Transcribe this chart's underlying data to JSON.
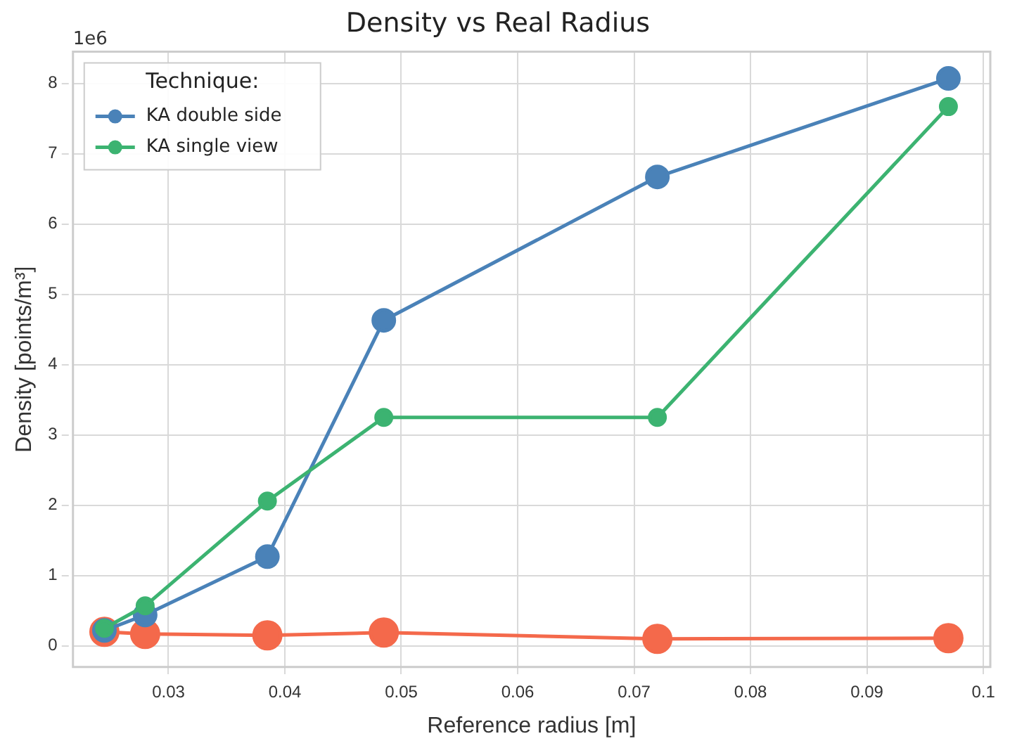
{
  "chart_data": {
    "type": "line",
    "title": "Density vs Real Radius",
    "xlabel": "Reference radius [m]",
    "ylabel": "Density [points/m³]",
    "legend_title": "Technique:",
    "annotations": [
      "1e6"
    ],
    "x": [
      0.0245,
      0.028,
      0.0385,
      0.0485,
      0.072,
      0.097
    ],
    "series": [
      {
        "color": "#f4694b",
        "values": [
          0.2,
          0.17,
          0.15,
          0.19,
          0.1,
          0.11
        ]
      },
      {
        "name": "KA double side",
        "color": "#4a82b8",
        "values": [
          0.22,
          0.44,
          1.27,
          4.63,
          6.67,
          8.07
        ]
      },
      {
        "name": "KA single view",
        "color": "#3cb371",
        "values": [
          0.25,
          0.57,
          2.06,
          3.25,
          3.25,
          7.67
        ]
      }
    ],
    "xlim": [
      0.0218,
      0.1006
    ],
    "xticks": [
      0.03,
      0.04,
      0.05,
      0.06,
      0.07,
      0.08,
      0.09,
      0.1
    ],
    "ylim": [
      -0.3,
      8.45
    ],
    "yticks": [
      0,
      1,
      2,
      3,
      4,
      5,
      6,
      7,
      8
    ],
    "grid": true,
    "legend": "top left",
    "marker": "circle",
    "line_style": "solid"
  }
}
